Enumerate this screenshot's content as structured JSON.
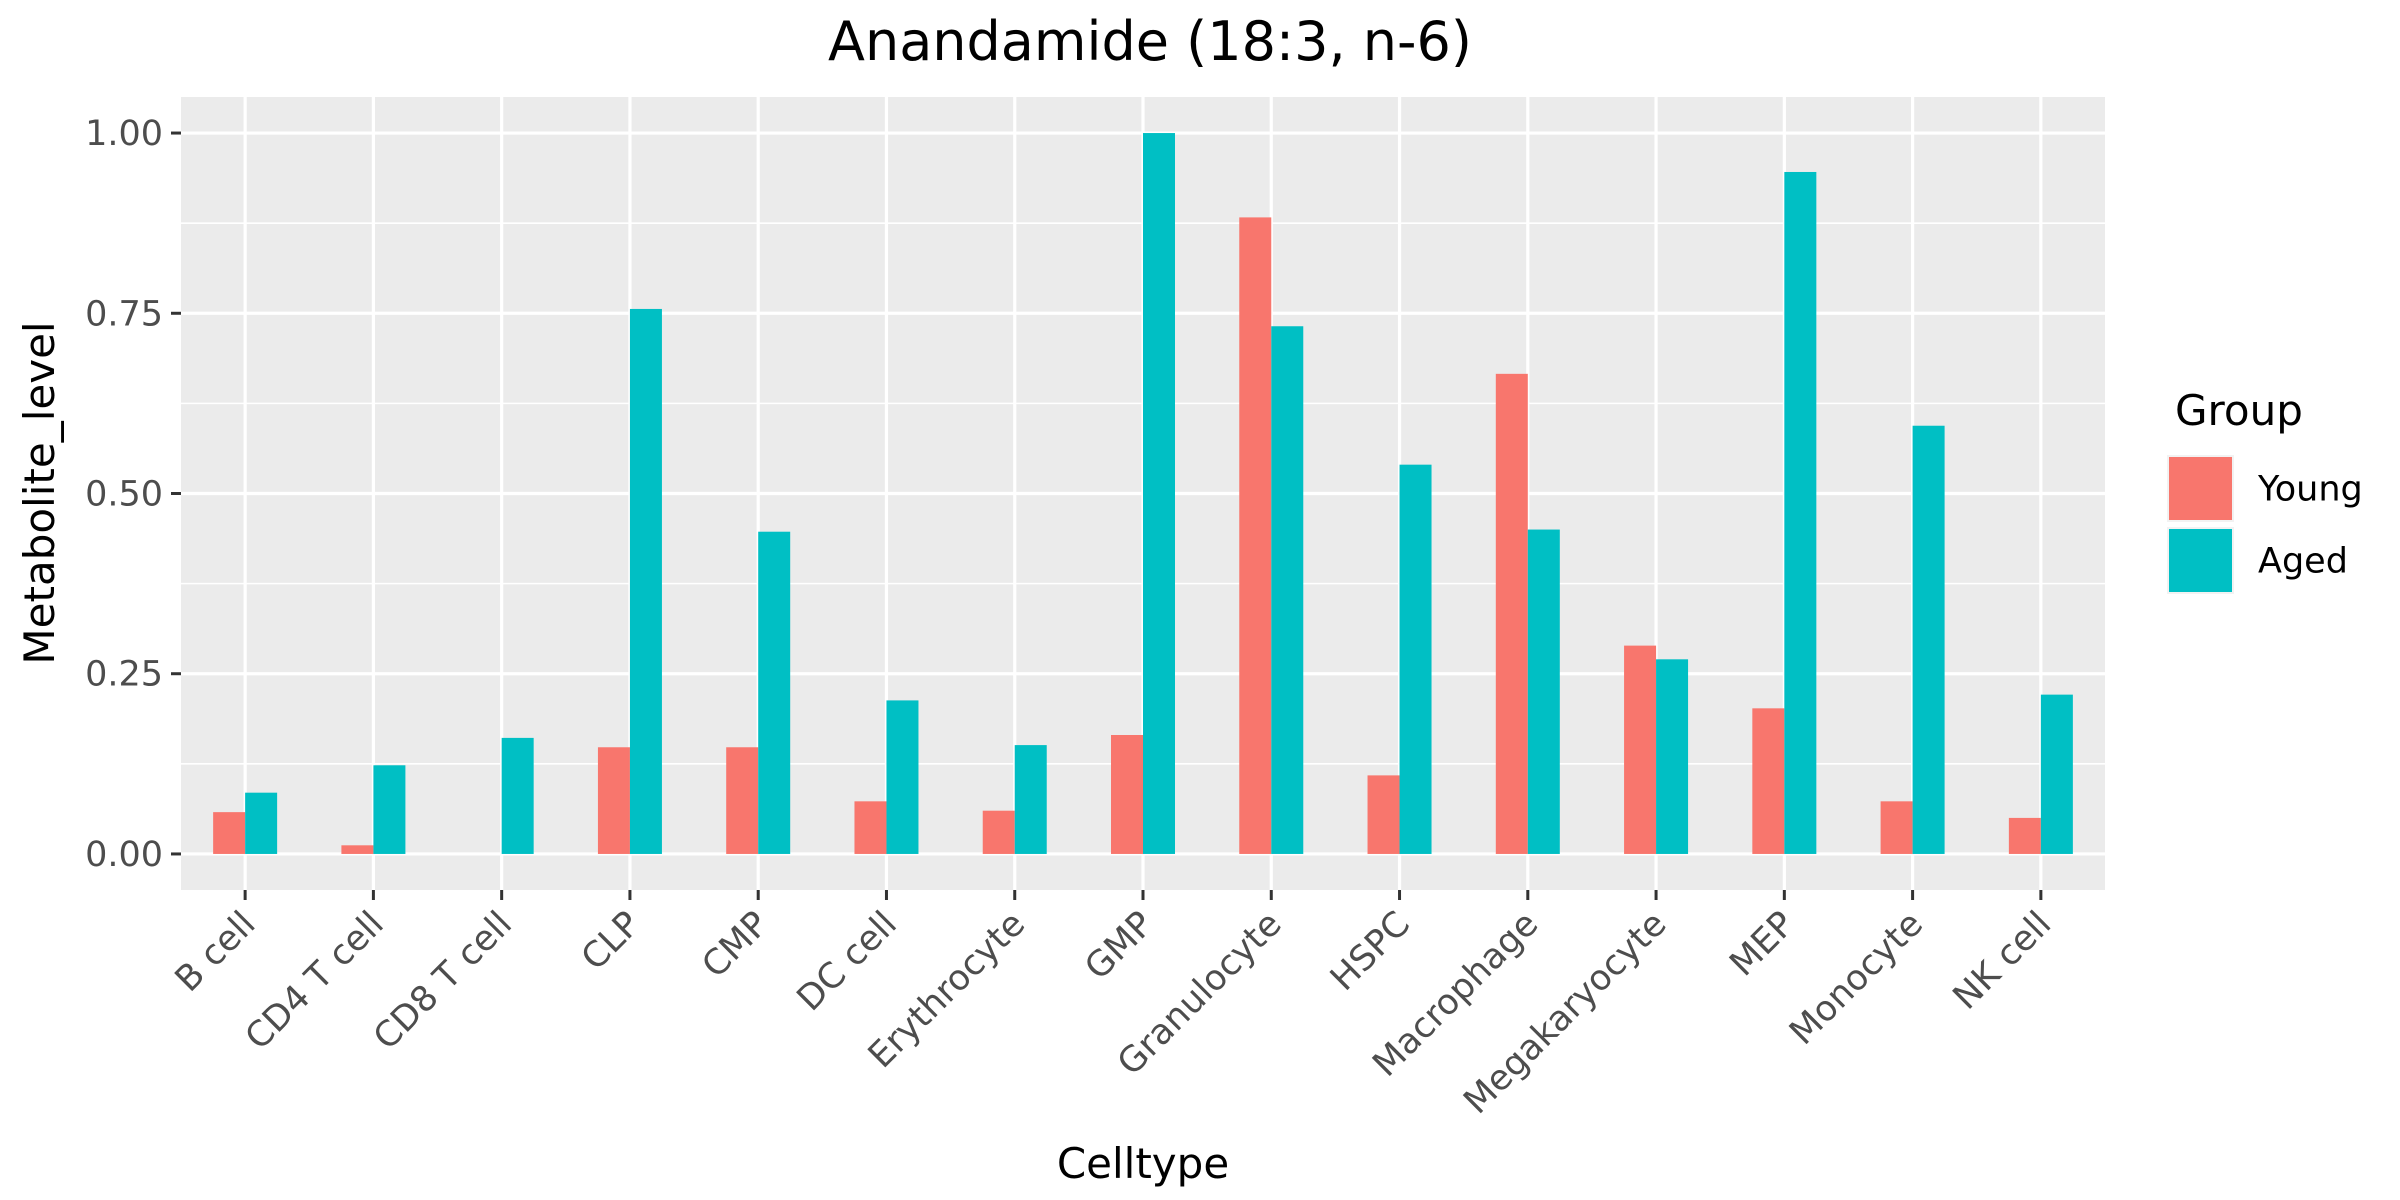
{
  "chart_data": {
    "type": "bar",
    "title": "Anandamide (18:3, n-6)",
    "xlabel": "Celltype",
    "ylabel": "Metabolite_level",
    "ylim": [
      -0.05,
      1.05
    ],
    "yticks": [
      "0.00",
      "0.25",
      "0.50",
      "0.75",
      "1.00"
    ],
    "ytick_values": [
      0,
      0.25,
      0.5,
      0.75,
      1.0
    ],
    "grid": true,
    "legend_position": "right",
    "legend_title": "Group",
    "categories": [
      "B cell",
      "CD4 T cell",
      "CD8 T cell",
      "CLP",
      "CMP",
      "DC cell",
      "Erythrocyte",
      "GMP",
      "Granulocyte",
      "HSPC",
      "Macrophage",
      "Megakaryocyte",
      "MEP",
      "Monocyte",
      "NK cell"
    ],
    "series": [
      {
        "name": "Young",
        "color": "#F8766D",
        "values": [
          0.058,
          0.012,
          0.0,
          0.148,
          0.148,
          0.073,
          0.06,
          0.165,
          0.883,
          0.109,
          0.666,
          0.289,
          0.202,
          0.073,
          0.05
        ]
      },
      {
        "name": "Aged",
        "color": "#00BFC4",
        "values": [
          0.085,
          0.123,
          0.161,
          0.756,
          0.447,
          0.213,
          0.151,
          1.0,
          0.732,
          0.54,
          0.45,
          0.27,
          0.946,
          0.594,
          0.221
        ]
      }
    ]
  }
}
